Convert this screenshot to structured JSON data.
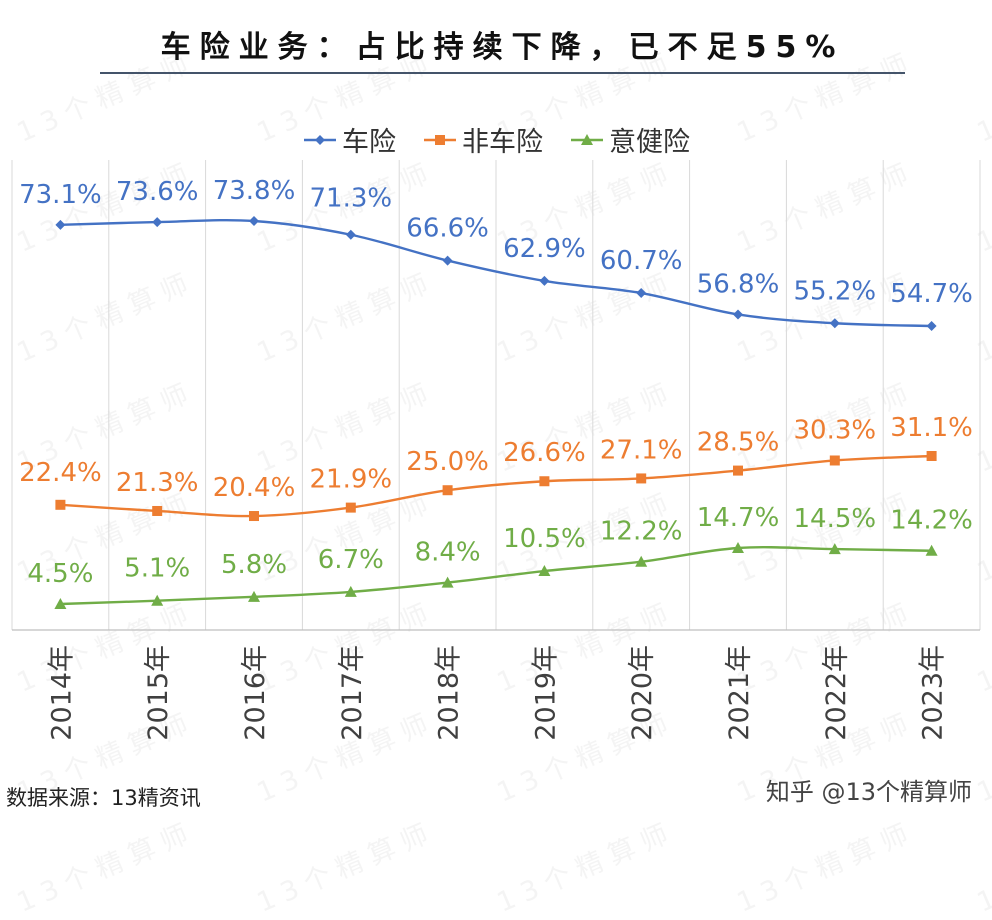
{
  "title": "车险业务：占比持续下降，已不足55%",
  "watermark_text": "13个精算师",
  "source": "数据来源：13精资讯",
  "credit": "知乎 @13个精算师",
  "chart_data": {
    "type": "line",
    "title": "车险业务：占比持续下降，已不足55%",
    "categories": [
      "2014年",
      "2015年",
      "2016年",
      "2017年",
      "2018年",
      "2019年",
      "2020年",
      "2021年",
      "2022年",
      "2023年"
    ],
    "ylim": [
      0,
      80
    ],
    "grid": "vertical",
    "legend_position": "top",
    "series": [
      {
        "name": "车险",
        "color": "#4472c4",
        "marker": "diamond",
        "values": [
          73.1,
          73.6,
          73.8,
          71.3,
          66.6,
          62.9,
          60.7,
          56.8,
          55.2,
          54.7
        ],
        "labels": [
          "73.1%",
          "73.6%",
          "73.8%",
          "71.3%",
          "66.6%",
          "62.9%",
          "60.7%",
          "56.8%",
          "55.2%",
          "54.7%"
        ]
      },
      {
        "name": "非车险",
        "color": "#ed7d31",
        "marker": "square",
        "values": [
          22.4,
          21.3,
          20.4,
          21.9,
          25.0,
          26.6,
          27.1,
          28.5,
          30.3,
          31.1
        ],
        "labels": [
          "22.4%",
          "21.3%",
          "20.4%",
          "21.9%",
          "25.0%",
          "26.6%",
          "27.1%",
          "28.5%",
          "30.3%",
          "31.1%"
        ]
      },
      {
        "name": "意健险",
        "color": "#70ad47",
        "marker": "triangle",
        "values": [
          4.5,
          5.1,
          5.8,
          6.7,
          8.4,
          10.5,
          12.2,
          14.7,
          14.5,
          14.2
        ],
        "labels": [
          "4.5%",
          "5.1%",
          "5.8%",
          "6.7%",
          "8.4%",
          "10.5%",
          "12.2%",
          "14.7%",
          "14.5%",
          "14.2%"
        ]
      }
    ]
  }
}
